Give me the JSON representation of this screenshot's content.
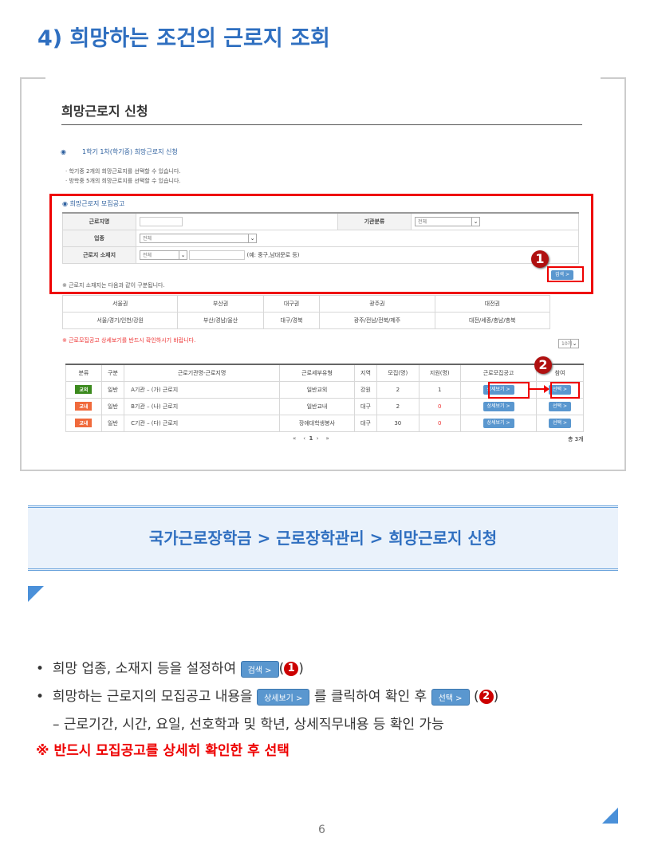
{
  "title": "4) 희망하는 조건의 근로지 조회",
  "screenshot": {
    "page_title": "희망근로지 신청",
    "section_title": "1학기 1차(학기중) 희망근로지 신청",
    "notes": [
      "학기중 2개의 희망근로지를 선택할 수 있습니다.",
      "방학중 5개의 희망근로지를 선택할 수 있습니다."
    ],
    "search_title": "희망근로지 모집공고",
    "form": {
      "workplace_label": "근로지명",
      "workplace_value": "",
      "agency_label": "기관분류",
      "agency_value": "전체",
      "industry_label": "업종",
      "industry_value": "전체",
      "location_label": "근로지 소재지",
      "location_value": "전체",
      "location_hint": "(예: 중구,남대문로 등)",
      "search_button": "검색 >"
    },
    "region_note": "※ 근로지 소재지는 다음과 같이 구분됩니다.",
    "regions": {
      "headers": [
        "서울권",
        "부산권",
        "대구권",
        "광주권",
        "대전권"
      ],
      "values": [
        "서울/경기/인천/강원",
        "부산/경남/울산",
        "대구/경북",
        "광주/전남/전북/제주",
        "대전/세종/충남/충북"
      ]
    },
    "warning": "※ 근로모집공고 상세보기를 반드시 확인하시기 바랍니다.",
    "page_size": "10개",
    "table": {
      "headers": [
        "분류",
        "구분",
        "근로기관명-근로지명",
        "근로세부유형",
        "지역",
        "모집(명)",
        "지원(명)",
        "근로모집공고",
        "참여"
      ],
      "rows": [
        {
          "badge": "교외",
          "badge_color": "#3c8a1e",
          "type": "일반",
          "name": "A기관 – (가) 근로지",
          "detail": "일반교외",
          "region": "강원",
          "recruit": "2",
          "applied": "1",
          "detail_btn": "상세보기 >",
          "select_btn": "선택 >"
        },
        {
          "badge": "교내",
          "badge_color": "#f06a3c",
          "type": "일반",
          "name": "B기관 – (나) 근로지",
          "detail": "일반교내",
          "region": "대구",
          "recruit": "2",
          "applied": "0",
          "detail_btn": "상세보기 >",
          "select_btn": "선택 >"
        },
        {
          "badge": "교내",
          "badge_color": "#f06a3c",
          "type": "일반",
          "name": "C기관 – (다) 근로지",
          "detail": "장애대학생봉사",
          "region": "대구",
          "recruit": "30",
          "applied": "0",
          "detail_btn": "상세보기 >",
          "select_btn": "선택 >"
        }
      ]
    },
    "pagination": {
      "first": "«",
      "prev": "‹",
      "current": "1",
      "next": "›",
      "last": "»"
    },
    "total": "총 3개",
    "markers": [
      "1",
      "2"
    ]
  },
  "banner": "국가근로장학금 > 근로장학관리 > 희망근로지 신청",
  "bullets": {
    "b1_text": "희망 업종, 소재지 등을 설정하여",
    "b1_btn": "검색 >",
    "b1_num": "1",
    "b2_text": "희망하는 근로지의 모집공고 내용을",
    "b2_btn": "상세보기 >",
    "b2_mid": "를 클릭하여 확인 후",
    "b2_btn2": "선택 >",
    "b2_num": "2",
    "sub": "– 근로기간, 시간, 요일, 선호학과 및 학년, 상세직무내용 등 확인 가능",
    "warning": "※ 반드시 모집공고를 상세히 확인한 후 선택"
  },
  "page_number": "6",
  "colors": {
    "accent": "#2f6fc0",
    "alert": "#e00000",
    "button": "#5a97cf"
  }
}
